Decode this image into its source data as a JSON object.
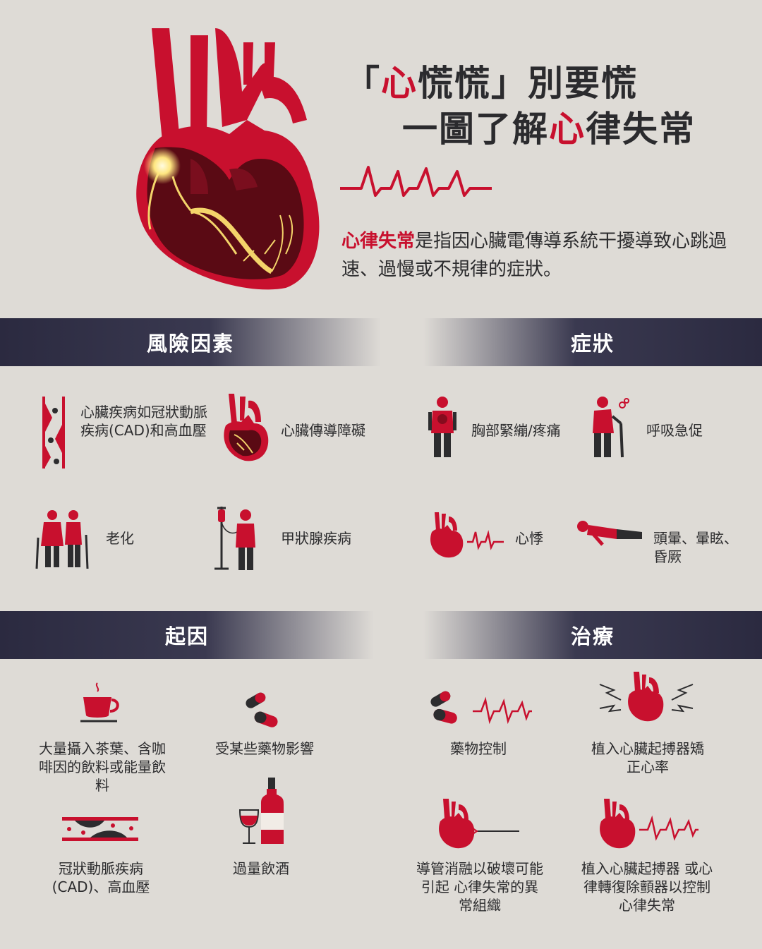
{
  "header": {
    "title_line1_quote_open": "「",
    "title_line1_red": "心",
    "title_line1_rest_a": "慌慌",
    "title_line1_quote_close": "」",
    "title_line1_rest_b": "別要慌",
    "title_line2_a": "一圖了解",
    "title_line2_red": "心",
    "title_line2_b": "律失常",
    "intro_red": "心律失常",
    "intro_rest": "是指因心臟電傳導系統干擾導致心跳過速、過慢或不規律的症狀。"
  },
  "sections": {
    "risk": {
      "title": "風險因素",
      "items": [
        "心臟疾病如冠狀動脈疾病(CAD)和高血壓",
        "心臟傳導障礙",
        "老化",
        "甲狀腺疾病"
      ]
    },
    "symptoms": {
      "title": "症狀",
      "items": [
        "胸部緊繃/疼痛",
        "呼吸急促",
        "心悸",
        "頭暈、暈眩、昏厥"
      ]
    },
    "causes": {
      "title": "起因",
      "items": [
        "大量攝入茶葉、含咖啡因的飲料或能量飲料",
        "受某些藥物影響",
        "冠狀動脈疾病(CAD)、高血壓",
        "過量飲酒"
      ]
    },
    "treatment": {
      "title": "治療",
      "items": [
        "藥物控制",
        "植入心臟起搏器矯正心率",
        "導管消融以破壞可能引起 心律失常的異常組織",
        "植入心臟起搏器 或心律轉復除顫器以控制心律失常"
      ]
    }
  },
  "colors": {
    "accent": "#c8102e",
    "dark_band": "#2b2a40",
    "background": "#dedbd6"
  }
}
